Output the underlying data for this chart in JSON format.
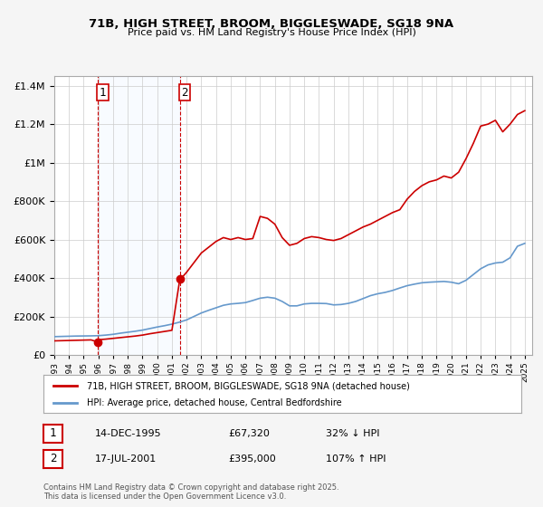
{
  "title": "71B, HIGH STREET, BROOM, BIGGLESWADE, SG18 9NA",
  "subtitle": "Price paid vs. HM Land Registry's House Price Index (HPI)",
  "legend_line1": "71B, HIGH STREET, BROOM, BIGGLESWADE, SG18 9NA (detached house)",
  "legend_line2": "HPI: Average price, detached house, Central Bedfordshire",
  "footnote": "Contains HM Land Registry data © Crown copyright and database right 2025.\nThis data is licensed under the Open Government Licence v3.0.",
  "sale1_label": "1",
  "sale1_date": "14-DEC-1995",
  "sale1_price": "£67,320",
  "sale1_hpi": "32% ↓ HPI",
  "sale1_year": 1995.96,
  "sale1_value": 67320,
  "sale2_label": "2",
  "sale2_date": "17-JUL-2001",
  "sale2_price": "£395,000",
  "sale2_hpi": "107% ↑ HPI",
  "sale2_year": 2001.54,
  "sale2_value": 395000,
  "red_color": "#cc0000",
  "blue_color": "#6699cc",
  "shading_color": "#ddeeff",
  "background_color": "#f5f5f5",
  "plot_bg_color": "#ffffff",
  "grid_color": "#cccccc",
  "ylim": [
    0,
    1450000
  ],
  "xlim_start": 1993.0,
  "xlim_end": 2025.5,
  "hpi_data": {
    "years": [
      1993.0,
      1993.5,
      1994.0,
      1994.5,
      1995.0,
      1995.5,
      1996.0,
      1996.5,
      1997.0,
      1997.5,
      1998.0,
      1998.5,
      1999.0,
      1999.5,
      2000.0,
      2000.5,
      2001.0,
      2001.5,
      2002.0,
      2002.5,
      2003.0,
      2003.5,
      2004.0,
      2004.5,
      2005.0,
      2005.5,
      2006.0,
      2006.5,
      2007.0,
      2007.5,
      2008.0,
      2008.5,
      2009.0,
      2009.5,
      2010.0,
      2010.5,
      2011.0,
      2011.5,
      2012.0,
      2012.5,
      2013.0,
      2013.5,
      2014.0,
      2014.5,
      2015.0,
      2015.5,
      2016.0,
      2016.5,
      2017.0,
      2017.5,
      2018.0,
      2018.5,
      2019.0,
      2019.5,
      2020.0,
      2020.5,
      2021.0,
      2021.5,
      2022.0,
      2022.5,
      2023.0,
      2023.5,
      2024.0,
      2024.5,
      2025.0
    ],
    "values": [
      95000,
      96000,
      97000,
      98000,
      98500,
      99000,
      100000,
      103000,
      107000,
      113000,
      118000,
      123000,
      129000,
      137000,
      145000,
      152000,
      160000,
      170000,
      182000,
      200000,
      218000,
      232000,
      245000,
      258000,
      265000,
      268000,
      272000,
      283000,
      295000,
      300000,
      295000,
      278000,
      255000,
      255000,
      265000,
      268000,
      268000,
      267000,
      260000,
      262000,
      268000,
      278000,
      293000,
      308000,
      318000,
      325000,
      335000,
      348000,
      360000,
      368000,
      375000,
      378000,
      380000,
      382000,
      378000,
      370000,
      388000,
      418000,
      448000,
      468000,
      478000,
      482000,
      505000,
      565000,
      580000
    ]
  },
  "red_line_data": {
    "years": [
      1993.0,
      1993.5,
      1994.0,
      1994.5,
      1995.0,
      1995.5,
      1995.96,
      1996.0,
      1996.5,
      1997.0,
      1997.5,
      1998.0,
      1998.5,
      1999.0,
      1999.5,
      2000.0,
      2000.5,
      2001.0,
      2001.54,
      2001.6,
      2002.0,
      2002.5,
      2003.0,
      2003.5,
      2004.0,
      2004.5,
      2005.0,
      2005.5,
      2006.0,
      2006.5,
      2007.0,
      2007.5,
      2008.0,
      2008.5,
      2009.0,
      2009.5,
      2010.0,
      2010.5,
      2011.0,
      2011.5,
      2012.0,
      2012.5,
      2013.0,
      2013.5,
      2014.0,
      2014.5,
      2015.0,
      2015.5,
      2016.0,
      2016.5,
      2017.0,
      2017.5,
      2018.0,
      2018.5,
      2019.0,
      2019.5,
      2020.0,
      2020.5,
      2021.0,
      2021.5,
      2022.0,
      2022.5,
      2023.0,
      2023.5,
      2024.0,
      2024.5,
      2025.0
    ],
    "values": [
      73000,
      74000,
      75000,
      76000,
      77000,
      78000,
      67320,
      79000,
      82000,
      86000,
      90000,
      94000,
      98000,
      103000,
      110000,
      116000,
      122000,
      128000,
      395000,
      395000,
      430000,
      480000,
      530000,
      560000,
      590000,
      610000,
      600000,
      610000,
      600000,
      605000,
      720000,
      710000,
      680000,
      610000,
      570000,
      580000,
      605000,
      615000,
      610000,
      600000,
      595000,
      605000,
      625000,
      645000,
      665000,
      680000,
      700000,
      720000,
      740000,
      755000,
      810000,
      850000,
      880000,
      900000,
      910000,
      930000,
      920000,
      950000,
      1020000,
      1100000,
      1190000,
      1200000,
      1220000,
      1160000,
      1200000,
      1250000,
      1270000
    ]
  }
}
